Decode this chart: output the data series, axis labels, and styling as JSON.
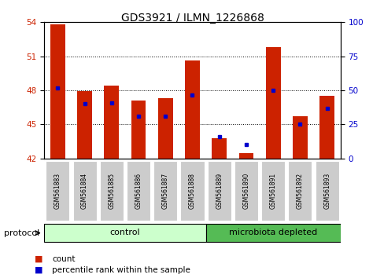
{
  "title": "GDS3921 / ILMN_1226868",
  "samples": [
    "GSM561883",
    "GSM561884",
    "GSM561885",
    "GSM561886",
    "GSM561887",
    "GSM561888",
    "GSM561889",
    "GSM561890",
    "GSM561891",
    "GSM561892",
    "GSM561893"
  ],
  "bar_heights": [
    53.8,
    47.9,
    48.4,
    47.1,
    47.3,
    50.6,
    43.8,
    42.5,
    51.8,
    45.7,
    47.5
  ],
  "blue_dot_values": [
    48.2,
    46.8,
    46.9,
    45.7,
    45.7,
    47.6,
    43.9,
    43.2,
    48.0,
    45.0,
    46.4
  ],
  "ymin": 42,
  "ymax": 54,
  "yticks_left": [
    42,
    45,
    48,
    51,
    54
  ],
  "yticks_right": [
    0,
    25,
    50,
    75,
    100
  ],
  "bar_color": "#CC2200",
  "dot_color": "#0000CC",
  "bar_width": 0.55,
  "control_count": 6,
  "depleted_count": 5,
  "groups": [
    {
      "label": "control",
      "color": "#CCFFCC"
    },
    {
      "label": "microbiota depleted",
      "color": "#55BB55"
    }
  ],
  "protocol_label": "protocol",
  "legend_count_label": "count",
  "legend_pct_label": "percentile rank within the sample",
  "grid_yticks": [
    45,
    48,
    51
  ],
  "background_color": "#FFFFFF",
  "tick_label_color_left": "#CC2200",
  "tick_label_color_right": "#0000CC",
  "sample_box_color": "#CCCCCC",
  "title_fontsize": 10,
  "tick_fontsize": 7.5,
  "sample_label_fontsize": 5.5,
  "protocol_fontsize": 8,
  "group_label_fontsize": 8,
  "legend_fontsize": 7.5
}
